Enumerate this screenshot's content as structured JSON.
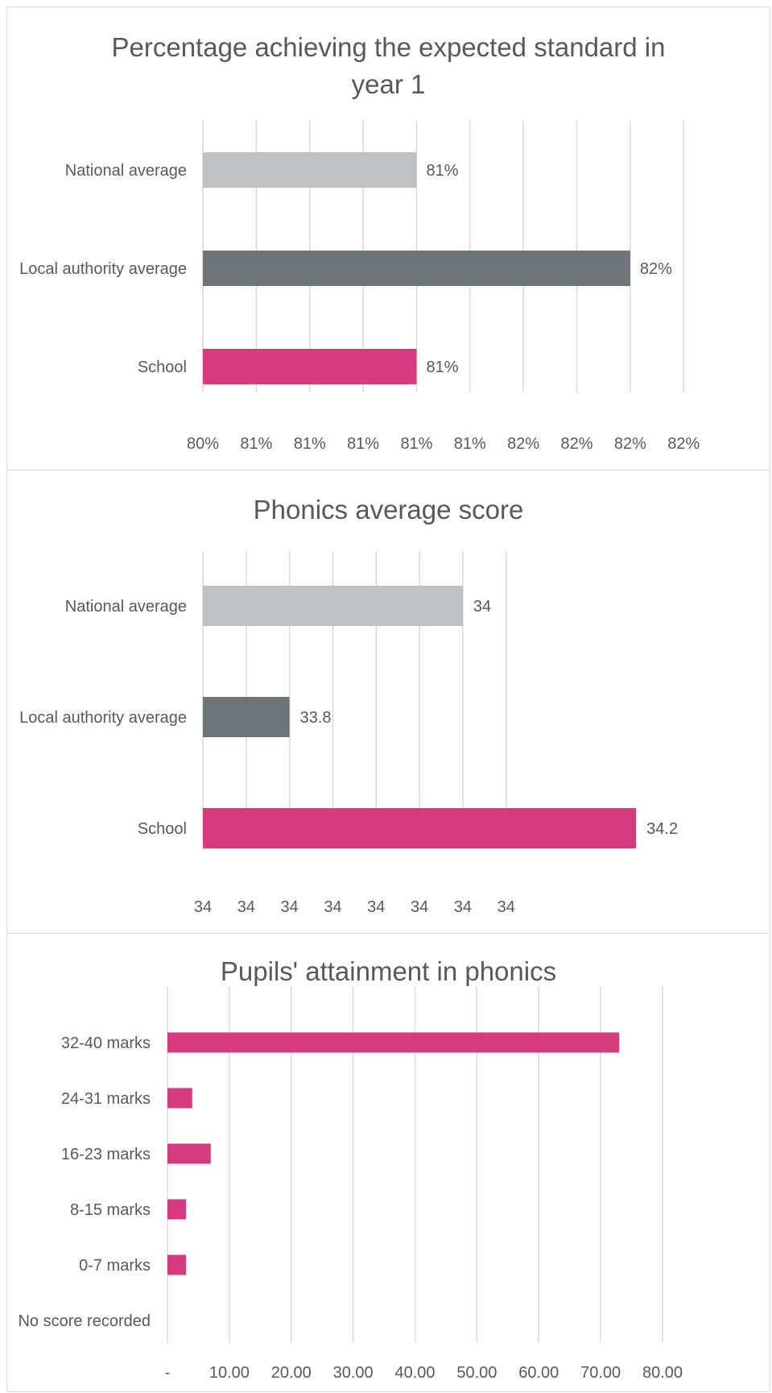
{
  "colors": {
    "national": "#bfc0c2",
    "local": "#6d7578",
    "school": "#d63b80",
    "grid": "#d9d9d9",
    "text": "#595959"
  },
  "chart_data": [
    {
      "type": "bar",
      "orientation": "horizontal",
      "title": "Percentage achieving the expected standard in year 1",
      "categories": [
        "National average",
        "Local authority average",
        "School"
      ],
      "values": [
        81,
        82,
        81
      ],
      "value_labels": [
        "81%",
        "82%",
        "81%"
      ],
      "bar_colors": [
        "#bfc0c2",
        "#6d7578",
        "#d63b80"
      ],
      "xlim": [
        80.0,
        82.2
      ],
      "x_ticks": [
        80.0,
        80.25,
        80.5,
        80.75,
        81.0,
        81.25,
        81.5,
        81.75,
        82.0,
        82.25
      ],
      "x_tick_labels": [
        "80%",
        "81%",
        "81%",
        "81%",
        "81%",
        "81%",
        "82%",
        "82%",
        "82%",
        "82%"
      ],
      "grid": true
    },
    {
      "type": "bar",
      "orientation": "horizontal",
      "title": "Phonics average score",
      "categories": [
        "National average",
        "Local authority average",
        "School"
      ],
      "values": [
        34.0,
        33.8,
        34.2
      ],
      "value_labels": [
        "34",
        "33.8",
        "34.2"
      ],
      "bar_colors": [
        "#bfc0c2",
        "#6d7578",
        "#d63b80"
      ],
      "xlim": [
        33.7,
        34.25
      ],
      "x_ticks": [
        33.7,
        33.75,
        33.8,
        33.85,
        33.9,
        33.95,
        34.0,
        34.05
      ],
      "x_tick_labels": [
        "34",
        "34",
        "34",
        "34",
        "34",
        "34",
        "34",
        "34"
      ],
      "grid": true
    },
    {
      "type": "bar",
      "orientation": "horizontal",
      "title": "Pupils' attainment in phonics",
      "categories": [
        "32-40 marks",
        "24-31 marks",
        "16-23 marks",
        "8-15 marks",
        "0-7 marks",
        "No score recorded"
      ],
      "values": [
        73,
        4,
        7,
        3,
        3,
        0
      ],
      "bar_colors": [
        "#d63b80",
        "#d63b80",
        "#d63b80",
        "#d63b80",
        "#d63b80",
        "#d63b80"
      ],
      "xlim": [
        0,
        80
      ],
      "x_ticks": [
        0,
        10,
        20,
        30,
        40,
        50,
        60,
        70,
        80
      ],
      "x_tick_labels": [
        "-",
        "10.00",
        "20.00",
        "30.00",
        "40.00",
        "50.00",
        "60.00",
        "70.00",
        "80.00"
      ],
      "grid": true
    }
  ]
}
